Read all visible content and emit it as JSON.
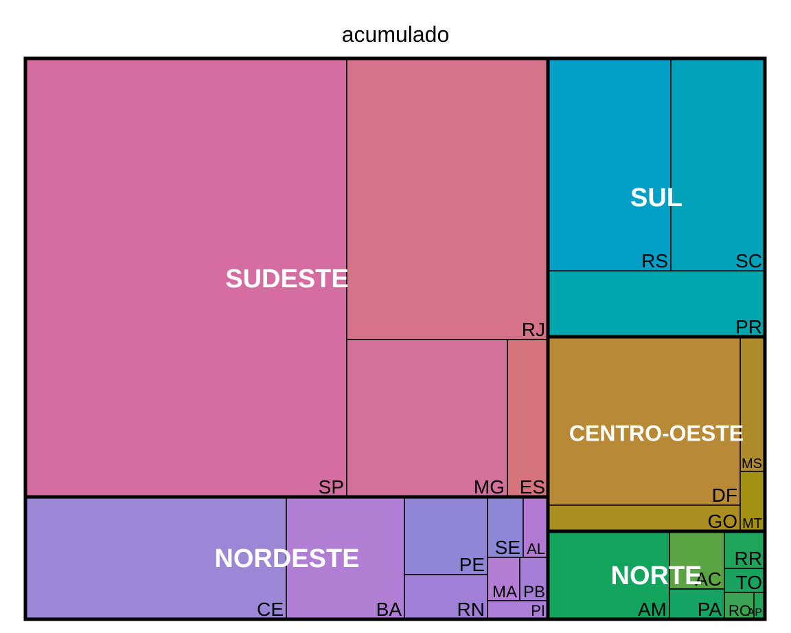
{
  "chart_data": {
    "type": "treemap",
    "title": "acumulado",
    "groups": [
      {
        "name": "SUDESTE",
        "items": [
          {
            "name": "SP",
            "color": "#d46da0"
          },
          {
            "name": "RJ",
            "color": "#d47389"
          },
          {
            "name": "MG",
            "color": "#d47198"
          },
          {
            "name": "ES",
            "color": "#d4757e"
          }
        ]
      },
      {
        "name": "SUL",
        "items": [
          {
            "name": "RS",
            "color": "#00a0c6"
          },
          {
            "name": "SC",
            "color": "#00a2ba"
          },
          {
            "name": "PR",
            "color": "#00a6ad"
          }
        ]
      },
      {
        "name": "CENTRO-OESTE",
        "items": [
          {
            "name": "MS",
            "color": "#ad8a2a"
          },
          {
            "name": "DF",
            "color": "#b88a38"
          },
          {
            "name": "GO",
            "color": "#ab8e20"
          },
          {
            "name": "MT",
            "color": "#a3900f"
          }
        ]
      },
      {
        "name": "NORDESTE",
        "items": [
          {
            "name": "CE",
            "color": "#9c86d6"
          },
          {
            "name": "BA",
            "color": "#b07fd4"
          },
          {
            "name": "PE",
            "color": "#9186d6"
          },
          {
            "name": "RN",
            "color": "#a080d6"
          },
          {
            "name": "SE",
            "color": "#8c88d6"
          },
          {
            "name": "AL",
            "color": "#b37ad4"
          },
          {
            "name": "MA",
            "color": "#b47dd4"
          },
          {
            "name": "PB",
            "color": "#a57fd6"
          },
          {
            "name": "PI",
            "color": "#ae7fd6"
          }
        ]
      },
      {
        "name": "NORTE",
        "items": [
          {
            "name": "AM",
            "color": "#13a55e"
          },
          {
            "name": "AC",
            "color": "#5ba444"
          },
          {
            "name": "PA",
            "color": "#14a564"
          },
          {
            "name": "RR",
            "color": "#1ea35a"
          },
          {
            "name": "TO",
            "color": "#1aa35f"
          },
          {
            "name": "RO",
            "color": "#3aa452"
          },
          {
            "name": "AP",
            "color": "#25a458"
          }
        ]
      }
    ]
  }
}
